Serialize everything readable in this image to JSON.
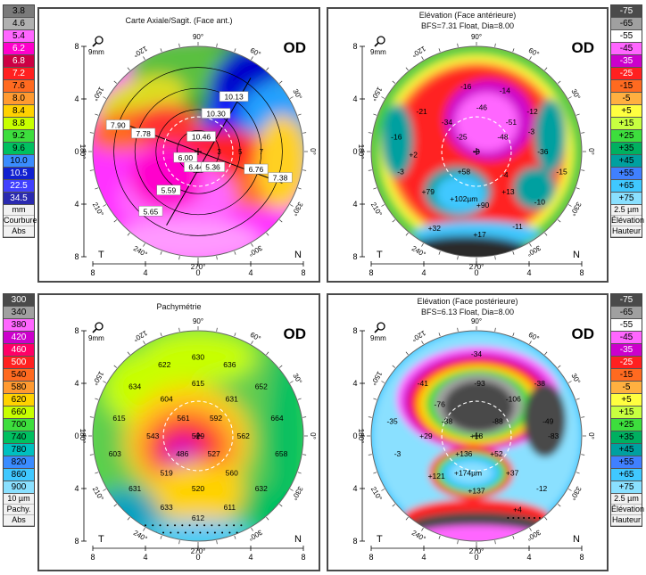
{
  "left_scale_top": {
    "values": [
      "3.8",
      "4.6",
      "5.4",
      "6.2",
      "6.8",
      "7.2",
      "7.6",
      "8.0",
      "8.4",
      "8.8",
      "9.2",
      "9.6",
      "10.0",
      "10.5",
      "22.5",
      "34.5"
    ],
    "colors": [
      "#7a7a7a",
      "#b0b0b0",
      "#ff66ff",
      "#ff00cc",
      "#cc0044",
      "#ff2020",
      "#ff6a20",
      "#ff9a30",
      "#ffd200",
      "#c8ff00",
      "#3dde3d",
      "#00c060",
      "#3a8cff",
      "#1020d0",
      "#4040ff",
      "#2a2ab0"
    ],
    "unit": "mm",
    "caption1": "Courbure",
    "caption2": "Abs"
  },
  "left_scale_bottom": {
    "values": [
      "300",
      "340",
      "380",
      "420",
      "460",
      "500",
      "540",
      "580",
      "620",
      "660",
      "700",
      "740",
      "780",
      "820",
      "860",
      "900"
    ],
    "colors": [
      "#4a4a4a",
      "#a0a0a0",
      "#ff66ff",
      "#cc00cc",
      "#ff0066",
      "#ff2020",
      "#ff6a20",
      "#ff9a30",
      "#ffd200",
      "#c8ff00",
      "#3dde3d",
      "#00c060",
      "#00c0c0",
      "#3a8cff",
      "#40c8ff",
      "#8ae0ff"
    ],
    "unit": "10 µm",
    "caption1": "Pachy.",
    "caption2": "Abs"
  },
  "right_scale_top": {
    "values": [
      "-75",
      "-65",
      "-55",
      "-45",
      "-35",
      "-25",
      "-15",
      "-5",
      "+5",
      "+15",
      "+25",
      "+35",
      "+45",
      "+55",
      "+65",
      "+75"
    ],
    "colors": [
      "#4a4a4a",
      "#a0a0a0",
      "#ffffff",
      "#ff66ff",
      "#cc00cc",
      "#ff2020",
      "#ff6a20",
      "#ffb040",
      "#ffff40",
      "#c8ff40",
      "#3dde3d",
      "#00b060",
      "#00a0a0",
      "#4080ff",
      "#40c8ff",
      "#8ae0ff"
    ],
    "unit": "2.5 µm",
    "caption1": "Élévation",
    "caption2": "Hauteur"
  },
  "right_scale_bottom": {
    "values": [
      "-75",
      "-65",
      "-55",
      "-45",
      "-35",
      "-25",
      "-15",
      "-5",
      "+5",
      "+15",
      "+25",
      "+35",
      "+45",
      "+55",
      "+65",
      "+75"
    ],
    "colors": [
      "#4a4a4a",
      "#a0a0a0",
      "#ffffff",
      "#ff66ff",
      "#cc00cc",
      "#ff2020",
      "#ff6a20",
      "#ffb040",
      "#ffff40",
      "#c8ff40",
      "#3dde3d",
      "#00b060",
      "#00a0a0",
      "#4080ff",
      "#40c8ff",
      "#8ae0ff"
    ],
    "unit": "2.5 µm",
    "caption1": "Élévation",
    "caption2": "Hauteur"
  },
  "panels": {
    "axial": {
      "title": "Carte Axiale/Sagit. (Face ant.)",
      "eye": "OD",
      "zoom": "9mm",
      "left_corner": "T",
      "right_corner": "N",
      "deg": {
        "d90": "90°",
        "d60": "60°",
        "d30": "30°",
        "d0": "0°",
        "d330": "330°",
        "d300": "300°",
        "d270": "270°",
        "d240": "240°",
        "d210": "210°",
        "d180": "180°",
        "d150": "150°",
        "d120": "120°"
      },
      "y_ticks": [
        "8",
        "4",
        "0",
        "4",
        "8"
      ],
      "x_ticks": [
        "8",
        "4",
        "0",
        "4",
        "8"
      ],
      "ring_labels": [
        "3",
        "5",
        "7"
      ],
      "values": [
        {
          "text": "10.13",
          "x": 0.34,
          "y": -0.52
        },
        {
          "text": "10.30",
          "x": 0.17,
          "y": -0.36
        },
        {
          "text": "10.46",
          "x": 0.03,
          "y": -0.14
        },
        {
          "text": "7.90",
          "x": -0.76,
          "y": -0.25
        },
        {
          "text": "7.78",
          "x": -0.52,
          "y": -0.17
        },
        {
          "text": "6.00",
          "x": -0.12,
          "y": 0.06
        },
        {
          "text": "6.44",
          "x": -0.02,
          "y": 0.15
        },
        {
          "text": "5.36",
          "x": 0.14,
          "y": 0.15
        },
        {
          "text": "6.76",
          "x": 0.55,
          "y": 0.17
        },
        {
          "text": "7.38",
          "x": 0.78,
          "y": 0.25
        },
        {
          "text": "5.59",
          "x": -0.28,
          "y": 0.37
        },
        {
          "text": "5.65",
          "x": -0.45,
          "y": 0.57
        }
      ]
    },
    "elev_ant": {
      "title": "Elévation (Face antérieure)",
      "subtitle": "BFS=7.31 Float, Dia=8.00",
      "eye": "OD",
      "zoom": "9mm",
      "left_corner": "T",
      "right_corner": "N",
      "deg": {
        "d90": "90°",
        "d60": "60°",
        "d30": "30°",
        "d0": "0°",
        "d330": "330°",
        "d300": "300°",
        "d270": "270°",
        "d240": "240°",
        "d210": "210°",
        "d180": "180°",
        "d150": "150°",
        "d120": "120°"
      },
      "y_ticks": [
        "8",
        "4",
        "0",
        "4",
        "8"
      ],
      "x_ticks": [
        "8",
        "4",
        "0",
        "4",
        "8"
      ],
      "values": [
        {
          "text": "-16",
          "x": -0.1,
          "y": -0.62
        },
        {
          "text": "-14",
          "x": 0.27,
          "y": -0.58
        },
        {
          "text": "-21",
          "x": -0.52,
          "y": -0.38
        },
        {
          "text": "-12",
          "x": 0.53,
          "y": -0.38
        },
        {
          "text": "-34",
          "x": -0.28,
          "y": -0.28
        },
        {
          "text": "-46",
          "x": 0.05,
          "y": -0.42
        },
        {
          "text": "-51",
          "x": 0.33,
          "y": -0.28
        },
        {
          "text": "-16",
          "x": -0.76,
          "y": -0.14
        },
        {
          "text": "-25",
          "x": -0.14,
          "y": -0.14
        },
        {
          "text": "-48",
          "x": 0.25,
          "y": -0.14
        },
        {
          "text": "-36",
          "x": 0.63,
          "y": 0.0
        },
        {
          "text": "+2",
          "x": -0.6,
          "y": 0.03
        },
        {
          "text": "-3",
          "x": 0.0,
          "y": 0.0
        },
        {
          "text": "-3",
          "x": -0.72,
          "y": 0.19
        },
        {
          "text": "+58",
          "x": -0.12,
          "y": 0.19
        },
        {
          "text": "-15",
          "x": 0.81,
          "y": 0.19
        },
        {
          "text": "-4",
          "x": 0.27,
          "y": 0.22
        },
        {
          "text": "+79",
          "x": -0.46,
          "y": 0.38
        },
        {
          "text": "+102µm",
          "x": -0.12,
          "y": 0.45
        },
        {
          "text": "+90",
          "x": 0.06,
          "y": 0.51
        },
        {
          "text": "+13",
          "x": 0.3,
          "y": 0.38
        },
        {
          "text": "-10",
          "x": 0.6,
          "y": 0.48
        },
        {
          "text": "-11",
          "x": 0.39,
          "y": 0.71
        },
        {
          "text": "+32",
          "x": -0.4,
          "y": 0.73
        },
        {
          "text": "+17",
          "x": 0.03,
          "y": 0.79
        },
        {
          "text": "-3",
          "x": 0.52,
          "y": -0.19
        }
      ]
    },
    "pachy": {
      "title": "Pachymétrie",
      "eye": "OD",
      "zoom": "9mm",
      "left_corner": "T",
      "right_corner": "N",
      "deg": {
        "d90": "90°",
        "d60": "60°",
        "d30": "30°",
        "d0": "0°",
        "d330": "330°",
        "d300": "300°",
        "d270": "270°",
        "d240": "240°",
        "d210": "210°",
        "d180": "180°",
        "d150": "150°",
        "d120": "120°"
      },
      "y_ticks": [
        "8",
        "4",
        "0",
        "4",
        "8"
      ],
      "x_ticks": [
        "8",
        "4",
        "0",
        "4",
        "8"
      ],
      "values": [
        {
          "text": "630",
          "x": 0.0,
          "y": -0.75
        },
        {
          "text": "622",
          "x": -0.32,
          "y": -0.68
        },
        {
          "text": "636",
          "x": 0.3,
          "y": -0.68
        },
        {
          "text": "634",
          "x": -0.6,
          "y": -0.47
        },
        {
          "text": "615",
          "x": 0.0,
          "y": -0.5
        },
        {
          "text": "652",
          "x": 0.6,
          "y": -0.47
        },
        {
          "text": "604",
          "x": -0.3,
          "y": -0.35
        },
        {
          "text": "631",
          "x": 0.32,
          "y": -0.35
        },
        {
          "text": "615",
          "x": -0.75,
          "y": -0.17
        },
        {
          "text": "561",
          "x": -0.14,
          "y": -0.17
        },
        {
          "text": "592",
          "x": 0.17,
          "y": -0.17
        },
        {
          "text": "664",
          "x": 0.75,
          "y": -0.17
        },
        {
          "text": "543",
          "x": -0.43,
          "y": 0.0
        },
        {
          "text": "529",
          "x": 0.0,
          "y": 0.0
        },
        {
          "text": "562",
          "x": 0.43,
          "y": 0.0
        },
        {
          "text": "603",
          "x": -0.79,
          "y": 0.17
        },
        {
          "text": "486",
          "x": -0.15,
          "y": 0.17
        },
        {
          "text": "527",
          "x": 0.15,
          "y": 0.17
        },
        {
          "text": "658",
          "x": 0.79,
          "y": 0.17
        },
        {
          "text": "519",
          "x": -0.3,
          "y": 0.35
        },
        {
          "text": "560",
          "x": 0.32,
          "y": 0.35
        },
        {
          "text": "631",
          "x": -0.6,
          "y": 0.5
        },
        {
          "text": "520",
          "x": 0.0,
          "y": 0.5
        },
        {
          "text": "632",
          "x": 0.6,
          "y": 0.5
        },
        {
          "text": "633",
          "x": -0.3,
          "y": 0.68
        },
        {
          "text": "611",
          "x": 0.3,
          "y": 0.68
        },
        {
          "text": "612",
          "x": 0.0,
          "y": 0.78
        }
      ]
    },
    "elev_post": {
      "title": "Elévation (Face postérieure)",
      "subtitle": "BFS=6.13 Float, Dia=8.00",
      "eye": "OD",
      "zoom": "9mm",
      "left_corner": "T",
      "right_corner": "N",
      "deg": {
        "d90": "90°",
        "d60": "60°",
        "d30": "30°",
        "d0": "0°",
        "d330": "330°",
        "d300": "300°",
        "d270": "270°",
        "d240": "240°",
        "d210": "210°",
        "d180": "180°",
        "d150": "150°",
        "d120": "120°"
      },
      "y_ticks": [
        "8",
        "4",
        "0",
        "4",
        "8"
      ],
      "x_ticks": [
        "8",
        "4",
        "0",
        "4",
        "8"
      ],
      "values": [
        {
          "text": "-34",
          "x": 0.0,
          "y": -0.78
        },
        {
          "text": "-41",
          "x": -0.51,
          "y": -0.5
        },
        {
          "text": "-93",
          "x": 0.03,
          "y": -0.5
        },
        {
          "text": "-38",
          "x": 0.6,
          "y": -0.5
        },
        {
          "text": "-76",
          "x": -0.35,
          "y": -0.3
        },
        {
          "text": "-106",
          "x": 0.35,
          "y": -0.35
        },
        {
          "text": "-35",
          "x": -0.8,
          "y": -0.14
        },
        {
          "text": "-38",
          "x": -0.28,
          "y": -0.14
        },
        {
          "text": "-88",
          "x": 0.2,
          "y": -0.14
        },
        {
          "text": "-49",
          "x": 0.68,
          "y": -0.14
        },
        {
          "text": "+29",
          "x": -0.48,
          "y": 0.0
        },
        {
          "text": "+18",
          "x": 0.0,
          "y": 0.0
        },
        {
          "text": "-83",
          "x": 0.73,
          "y": 0.0
        },
        {
          "text": "-3",
          "x": -0.75,
          "y": 0.17
        },
        {
          "text": "+136",
          "x": -0.12,
          "y": 0.17
        },
        {
          "text": "+52",
          "x": 0.19,
          "y": 0.17
        },
        {
          "text": "+121",
          "x": -0.38,
          "y": 0.38
        },
        {
          "text": "+174µm",
          "x": -0.08,
          "y": 0.35
        },
        {
          "text": "+37",
          "x": 0.34,
          "y": 0.35
        },
        {
          "text": "+137",
          "x": 0.0,
          "y": 0.52
        },
        {
          "text": "-12",
          "x": 0.62,
          "y": 0.5
        },
        {
          "text": "+4",
          "x": 0.39,
          "y": 0.7
        }
      ]
    }
  }
}
